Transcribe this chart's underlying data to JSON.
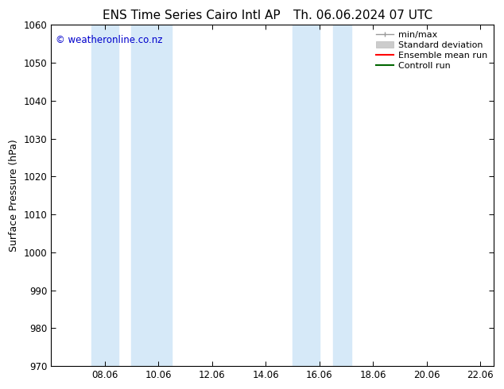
{
  "title_left": "ENS Time Series Cairo Intl AP",
  "title_right": "Th. 06.06.2024 07 UTC",
  "ylabel": "Surface Pressure (hPa)",
  "ylim": [
    970,
    1060
  ],
  "yticks": [
    970,
    980,
    990,
    1000,
    1010,
    1020,
    1030,
    1040,
    1050,
    1060
  ],
  "xlim_start": 6.0,
  "xlim_end": 22.5,
  "xtick_labels": [
    "08.06",
    "10.06",
    "12.06",
    "14.06",
    "16.06",
    "18.06",
    "20.06",
    "22.06"
  ],
  "xtick_positions": [
    8.0,
    10.0,
    12.0,
    14.0,
    16.0,
    18.0,
    20.0,
    22.0
  ],
  "shaded_bands": [
    {
      "x_start": 7.5,
      "x_end": 8.5,
      "color": "#d6e9f8"
    },
    {
      "x_start": 9.0,
      "x_end": 10.5,
      "color": "#d6e9f8"
    },
    {
      "x_start": 15.0,
      "x_end": 16.0,
      "color": "#d6e9f8"
    },
    {
      "x_start": 16.5,
      "x_end": 17.2,
      "color": "#d6e9f8"
    }
  ],
  "watermark": "© weatheronline.co.nz",
  "watermark_color": "#0000cc",
  "bg_color": "#ffffff",
  "plot_bg_color": "#ffffff",
  "spine_color": "#000000",
  "tick_color": "#000000",
  "title_fontsize": 11,
  "label_fontsize": 9,
  "tick_fontsize": 8.5,
  "legend_fontsize": 8
}
